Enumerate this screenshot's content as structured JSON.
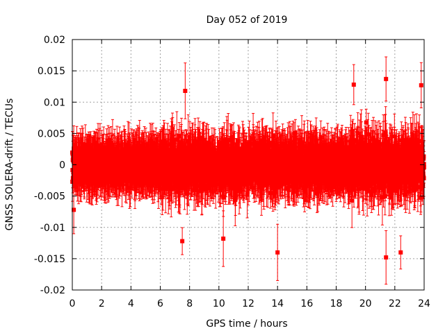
{
  "chart_data": {
    "type": "scatter",
    "title": "Day 052 of 2019",
    "xlabel": "GPS time / hours",
    "ylabel": "GNSS SOLERA-drift / TECUs",
    "xlim": [
      0,
      24
    ],
    "ylim": [
      -0.02,
      0.02
    ],
    "x_ticks": [
      "0",
      "2",
      "4",
      "6",
      "8",
      "10",
      "12",
      "14",
      "16",
      "18",
      "20",
      "22",
      "24"
    ],
    "y_ticks": [
      "-0.02",
      "-0.015",
      "-0.01",
      "-0.005",
      "0",
      "0.005",
      "0.01",
      "0.015",
      "0.02"
    ],
    "x_tick_values": [
      0,
      2,
      4,
      6,
      8,
      10,
      12,
      14,
      16,
      18,
      20,
      22,
      24
    ],
    "y_tick_values": [
      -0.02,
      -0.015,
      -0.01,
      -0.005,
      0,
      0.005,
      0.01,
      0.015,
      0.02
    ],
    "grid": true,
    "marker": "filled-square",
    "color": "#ff0000",
    "series": [
      {
        "name": "SOLERA drift",
        "sampling_interval_hours": 0.00833,
        "noise_profile": [
          {
            "x_from": 0,
            "x_to": 1,
            "std": 0.0026
          },
          {
            "x_from": 1,
            "x_to": 6,
            "std": 0.0028
          },
          {
            "x_from": 6,
            "x_to": 9,
            "std": 0.0042
          },
          {
            "x_from": 9,
            "x_to": 17,
            "std": 0.004
          },
          {
            "x_from": 17,
            "x_to": 19,
            "std": 0.0032
          },
          {
            "x_from": 19,
            "x_to": 24,
            "std": 0.0045
          }
        ],
        "error_bar_range": [
          0.002,
          0.0045
        ],
        "notable_points": [
          {
            "x": 0.1,
            "y": -0.0072
          },
          {
            "x": 7.7,
            "y": 0.0118
          },
          {
            "x": 7.5,
            "y": -0.0122
          },
          {
            "x": 10.3,
            "y": -0.0118
          },
          {
            "x": 14.0,
            "y": -0.014
          },
          {
            "x": 19.2,
            "y": 0.0128
          },
          {
            "x": 21.4,
            "y": 0.0137
          },
          {
            "x": 21.4,
            "y": -0.0148
          },
          {
            "x": 22.4,
            "y": -0.014
          },
          {
            "x": 23.8,
            "y": 0.0127
          }
        ]
      }
    ]
  }
}
